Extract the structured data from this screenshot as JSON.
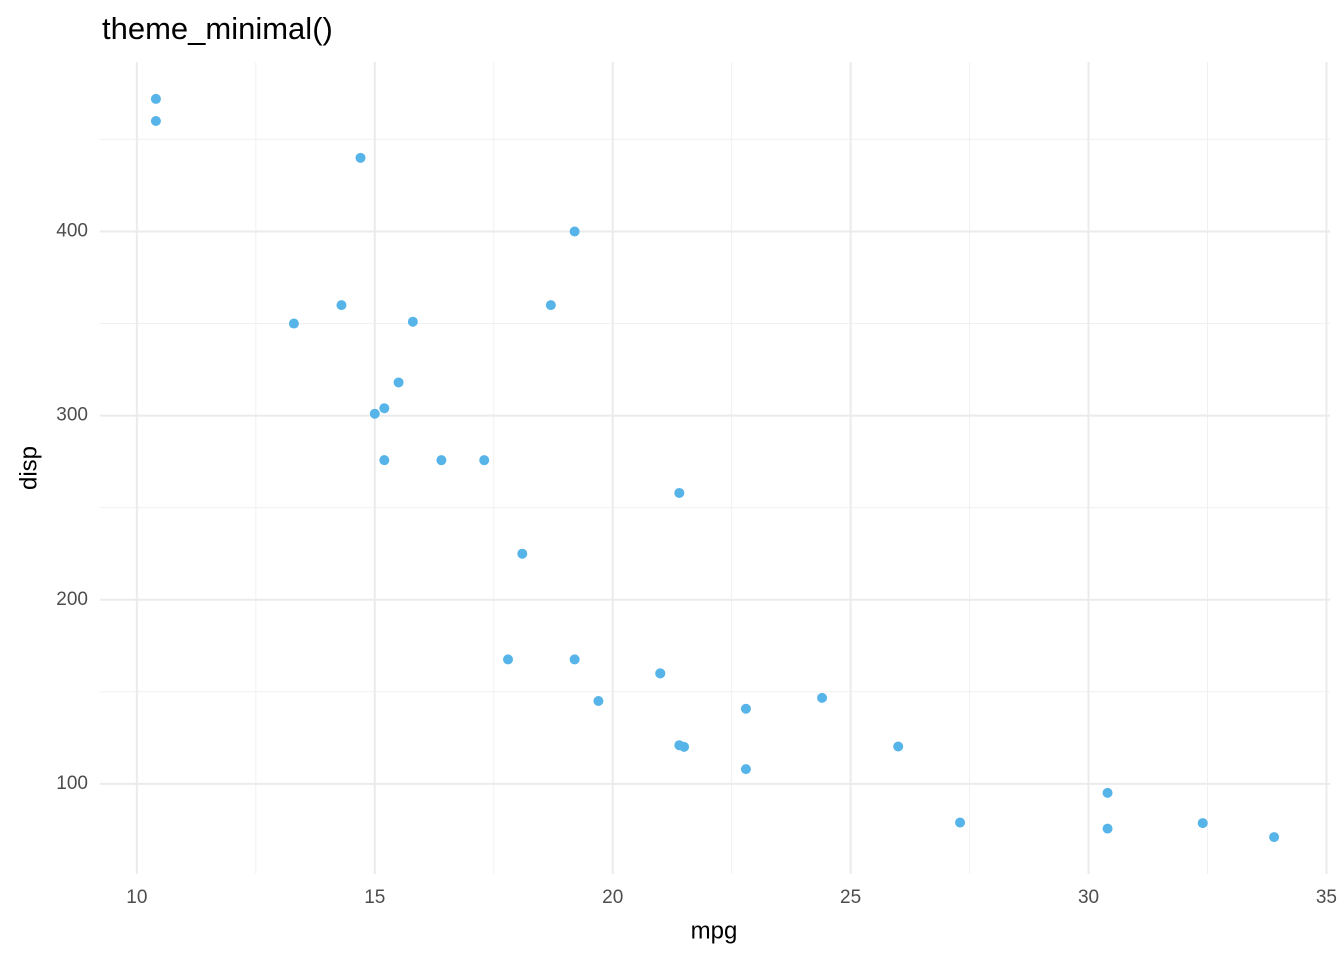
{
  "chart_data": {
    "type": "scatter",
    "title": "theme_minimal()",
    "x_label": "mpg",
    "y_label": "disp",
    "color": "#56B4E9",
    "x": [
      21.0,
      21.0,
      22.8,
      21.4,
      18.7,
      18.1,
      14.3,
      24.4,
      22.8,
      19.2,
      17.8,
      16.4,
      17.3,
      15.2,
      10.4,
      10.4,
      14.7,
      32.4,
      30.4,
      33.9,
      21.5,
      15.5,
      15.2,
      13.3,
      19.2,
      27.3,
      26.0,
      30.4,
      15.8,
      19.7,
      15.0,
      21.4
    ],
    "values": [
      160,
      160,
      108,
      258,
      360,
      225,
      360,
      146.7,
      140.8,
      167.6,
      167.6,
      275.8,
      275.8,
      275.8,
      472,
      460,
      440,
      78.7,
      75.7,
      71.1,
      120.1,
      318,
      304,
      350,
      400,
      79,
      120.3,
      95.1,
      351,
      145,
      301,
      121
    ],
    "xlim": [
      9.225,
      35.075
    ],
    "ylim": [
      51.055,
      492.045
    ],
    "xticks": [
      10,
      15,
      20,
      25,
      30,
      35
    ],
    "yticks": [
      100,
      200,
      300,
      400
    ],
    "x_minor_grid": [
      12.5,
      17.5,
      22.5,
      27.5,
      32.5
    ],
    "y_minor_grid": [
      150,
      250,
      350,
      450
    ],
    "grid": true
  }
}
